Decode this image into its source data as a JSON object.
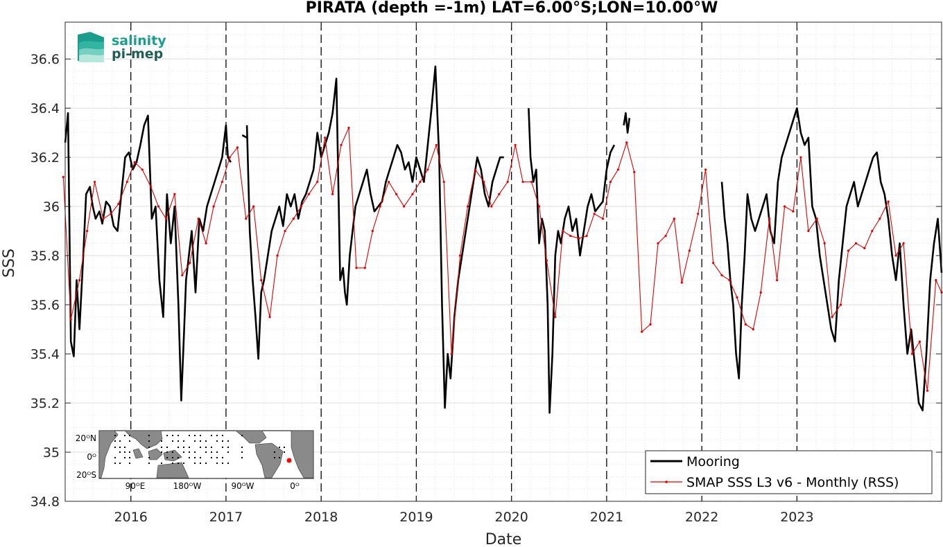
{
  "chart_data": {
    "type": "line",
    "title": "PIRATA (depth =-1m) LAT=6.00°S;LON=10.00°W",
    "xlabel": "Date",
    "ylabel": "SSS",
    "xlim": [
      2015.31,
      2024.52
    ],
    "ylim": [
      34.8,
      36.75
    ],
    "x_ticks": [
      2016,
      2017,
      2018,
      2019,
      2020,
      2021,
      2022,
      2023
    ],
    "x_tick_labels": [
      "2016",
      "2017",
      "2018",
      "2019",
      "2020",
      "2021",
      "2022",
      "2023"
    ],
    "y_ticks": [
      34.8,
      35,
      35.2,
      35.4,
      35.6,
      35.8,
      36,
      36.2,
      36.4,
      36.6
    ],
    "y_tick_labels": [
      "34.8",
      "35",
      "35.2",
      "35.4",
      "35.6",
      "35.8",
      "36",
      "36.2",
      "36.4",
      "36.6"
    ],
    "year_lines": [
      2016,
      2017,
      2018,
      2019,
      2020,
      2021,
      2022,
      2023
    ],
    "grid": true,
    "legend_position": "bottom-right",
    "series": [
      {
        "name": "Mooring",
        "color": "#000000",
        "segments": [
          {
            "x": [
              2015.31,
              2015.34,
              2015.37,
              2015.4,
              2015.43,
              2015.46,
              2015.5,
              2015.53,
              2015.57,
              2015.6,
              2015.63,
              2015.67,
              2015.7,
              2015.74,
              2015.78,
              2015.82,
              2015.86,
              2015.9,
              2015.94,
              2015.98,
              2016.02,
              2016.06,
              2016.1,
              2016.14,
              2016.18,
              2016.22,
              2016.26,
              2016.3,
              2016.34,
              2016.38,
              2016.42,
              2016.46,
              2016.5,
              2016.53,
              2016.56,
              2016.58,
              2016.61,
              2016.64,
              2016.68,
              2016.72,
              2016.76,
              2016.8,
              2016.84,
              2016.88,
              2016.92,
              2016.96,
              2017.0,
              2017.02,
              2017.05
            ],
            "y": [
              36.26,
              36.38,
              35.45,
              35.39,
              35.7,
              35.5,
              35.8,
              36.05,
              36.08,
              36.0,
              35.95,
              35.98,
              35.93,
              36.02,
              36.0,
              35.92,
              35.9,
              36.05,
              36.2,
              36.22,
              36.15,
              36.18,
              36.25,
              36.33,
              36.37,
              35.95,
              36.0,
              35.7,
              35.55,
              36.05,
              35.85,
              36.0,
              35.6,
              35.21,
              35.5,
              35.7,
              35.8,
              35.9,
              35.65,
              35.95,
              35.9,
              36.0,
              36.05,
              36.1,
              36.15,
              36.2,
              36.33,
              36.2,
              36.18
            ]
          },
          {
            "x": [
              2017.17,
              2017.22
            ],
            "y": [
              36.29,
              36.28
            ]
          },
          {
            "x": [
              2017.22,
              2017.25,
              2017.28,
              2017.31,
              2017.34,
              2017.37,
              2017.4,
              2017.44,
              2017.48,
              2017.52,
              2017.56,
              2017.6,
              2017.64,
              2017.68,
              2017.72,
              2017.76,
              2017.8,
              2017.84,
              2017.88,
              2017.92,
              2017.96,
              2018.0,
              2018.04,
              2018.08,
              2018.12,
              2018.16,
              2018.2,
              2018.23,
              2018.25,
              2018.27,
              2018.3,
              2018.33,
              2018.36,
              2018.4,
              2018.44,
              2018.48,
              2018.52,
              2018.56,
              2018.6,
              2018.64,
              2018.68,
              2018.72,
              2018.76,
              2018.8,
              2018.84,
              2018.88,
              2018.92,
              2018.96,
              2019.0,
              2019.04,
              2019.08,
              2019.12,
              2019.16,
              2019.2,
              2019.24,
              2019.27,
              2019.3,
              2019.33,
              2019.36,
              2019.4,
              2019.44,
              2019.48,
              2019.52,
              2019.56,
              2019.6,
              2019.64,
              2019.68,
              2019.72,
              2019.76,
              2019.8,
              2019.84,
              2019.88,
              2019.92
            ],
            "y": [
              36.33,
              35.9,
              35.7,
              35.55,
              35.38,
              35.65,
              35.7,
              35.8,
              35.9,
              35.95,
              36.0,
              35.92,
              36.05,
              36.0,
              36.05,
              35.95,
              36.02,
              36.05,
              36.1,
              36.15,
              36.3,
              36.2,
              36.25,
              36.3,
              36.38,
              36.52,
              35.7,
              35.75,
              35.65,
              35.6,
              35.8,
              35.9,
              36.0,
              36.05,
              36.1,
              36.15,
              36.05,
              35.98,
              36.0,
              36.02,
              36.1,
              36.15,
              36.2,
              36.25,
              36.22,
              36.15,
              36.18,
              36.1,
              36.2,
              36.15,
              36.1,
              36.25,
              36.4,
              36.57,
              36.2,
              35.6,
              35.18,
              35.4,
              35.3,
              35.55,
              35.7,
              35.8,
              35.9,
              36.0,
              36.1,
              36.2,
              36.15,
              36.05,
              36.0,
              36.1,
              36.15,
              36.2,
              36.2
            ]
          },
          {
            "x": [
              2020.18,
              2020.2,
              2020.23,
              2020.26,
              2020.29,
              2020.32,
              2020.35,
              2020.38,
              2020.4,
              2020.43,
              2020.46,
              2020.49,
              2020.52,
              2020.56,
              2020.6,
              2020.64,
              2020.68,
              2020.72,
              2020.76,
              2020.8,
              2020.84,
              2020.88,
              2020.92,
              2020.96,
              2021.0,
              2021.04,
              2021.08
            ],
            "y": [
              36.4,
              36.2,
              36.1,
              36.15,
              35.85,
              35.95,
              35.9,
              35.6,
              35.16,
              35.4,
              35.8,
              35.9,
              35.85,
              35.95,
              36.0,
              35.9,
              35.95,
              35.8,
              35.9,
              36.0,
              36.05,
              35.98,
              36.0,
              36.02,
              36.15,
              36.22,
              36.25
            ]
          },
          {
            "x": [
              2021.18,
              2021.2,
              2021.22,
              2021.24
            ],
            "y": [
              36.33,
              36.38,
              36.3,
              36.36
            ]
          },
          {
            "x": [
              2022.21,
              2022.24,
              2022.27,
              2022.3,
              2022.33,
              2022.36,
              2022.39,
              2022.42,
              2022.45,
              2022.48,
              2022.52,
              2022.56,
              2022.6,
              2022.64,
              2022.68,
              2022.72,
              2022.76,
              2022.8,
              2022.84,
              2022.88,
              2022.92,
              2022.96,
              2023.0,
              2023.04,
              2023.08,
              2023.12,
              2023.16,
              2023.2,
              2023.24,
              2023.28,
              2023.32,
              2023.36,
              2023.4,
              2023.44,
              2023.48,
              2023.52,
              2023.56,
              2023.6,
              2023.64,
              2023.68,
              2023.72,
              2023.76,
              2023.8,
              2023.84,
              2023.88,
              2023.92,
              2023.96,
              2024.0,
              2024.04,
              2024.08,
              2024.12,
              2024.16,
              2024.2,
              2024.24,
              2024.28,
              2024.32,
              2024.36,
              2024.4,
              2024.44,
              2024.48,
              2024.52
            ],
            "y": [
              36.1,
              35.95,
              35.85,
              35.7,
              35.6,
              35.4,
              35.3,
              35.6,
              35.8,
              36.05,
              35.95,
              35.9,
              35.95,
              36.0,
              36.05,
              35.9,
              35.85,
              36.1,
              36.2,
              36.25,
              36.3,
              36.35,
              36.4,
              36.3,
              36.25,
              36.28,
              36.0,
              35.95,
              35.8,
              35.7,
              35.6,
              35.5,
              35.45,
              35.7,
              35.85,
              36.0,
              36.05,
              36.1,
              36.0,
              36.05,
              36.1,
              36.15,
              36.2,
              36.22,
              36.1,
              36.05,
              35.95,
              35.8,
              35.7,
              35.85,
              35.6,
              35.4,
              35.5,
              35.35,
              35.2,
              35.17,
              35.4,
              35.7,
              35.85,
              35.95,
              35.73
            ]
          }
        ]
      },
      {
        "name": "SMAP SSS L3 v6 - Monthly (RSS)",
        "color": "#e00000",
        "x": [
          2015.29,
          2015.37,
          2015.46,
          2015.54,
          2015.62,
          2015.71,
          2015.79,
          2015.87,
          2015.96,
          2016.04,
          2016.12,
          2016.21,
          2016.29,
          2016.37,
          2016.46,
          2016.54,
          2016.62,
          2016.71,
          2016.79,
          2016.87,
          2016.96,
          2017.04,
          2017.12,
          2017.21,
          2017.29,
          2017.37,
          2017.46,
          2017.54,
          2017.62,
          2017.71,
          2017.79,
          2017.87,
          2017.96,
          2018.04,
          2018.12,
          2018.21,
          2018.29,
          2018.37,
          2018.46,
          2018.54,
          2018.62,
          2018.71,
          2018.79,
          2018.87,
          2018.96,
          2019.04,
          2019.12,
          2019.21,
          2019.29,
          2019.37,
          2019.46,
          2019.54,
          2019.62,
          2019.71,
          2019.79,
          2019.87,
          2019.96,
          2020.04,
          2020.12,
          2020.21,
          2020.29,
          2020.37,
          2020.46,
          2020.54,
          2020.62,
          2020.71,
          2020.79,
          2020.87,
          2020.96,
          2021.04,
          2021.12,
          2021.21,
          2021.29,
          2021.37,
          2021.46,
          2021.54,
          2021.62,
          2021.71,
          2021.79,
          2021.87,
          2021.96,
          2022.04,
          2022.12,
          2022.21,
          2022.29,
          2022.37,
          2022.46,
          2022.54,
          2022.62,
          2022.71,
          2022.79,
          2022.87,
          2022.96,
          2023.04,
          2023.12,
          2023.21,
          2023.29,
          2023.37,
          2023.46,
          2023.54,
          2023.62,
          2023.71,
          2023.79,
          2023.87,
          2023.96,
          2024.04,
          2024.12,
          2024.21,
          2024.29,
          2024.37,
          2024.46,
          2024.52
        ],
        "y": [
          36.12,
          35.54,
          35.7,
          35.9,
          36.1,
          35.95,
          35.97,
          36.01,
          36.1,
          36.18,
          36.15,
          36.08,
          36.0,
          35.95,
          36.05,
          35.72,
          35.77,
          35.95,
          35.85,
          36.0,
          36.1,
          36.2,
          36.24,
          35.95,
          36.0,
          35.7,
          35.55,
          35.8,
          35.9,
          35.95,
          36.0,
          36.05,
          36.1,
          36.28,
          36.05,
          36.25,
          36.32,
          35.75,
          35.75,
          35.9,
          36.0,
          36.1,
          36.05,
          36.0,
          36.05,
          36.1,
          36.15,
          36.25,
          36.1,
          35.4,
          35.8,
          36.0,
          36.15,
          36.1,
          36.0,
          36.05,
          36.1,
          36.25,
          36.1,
          36.1,
          36.0,
          35.78,
          35.55,
          35.9,
          35.88,
          35.87,
          35.88,
          35.97,
          35.95,
          36.1,
          36.15,
          36.26,
          36.14,
          35.49,
          35.52,
          35.85,
          35.88,
          35.95,
          35.69,
          35.82,
          35.97,
          36.15,
          35.77,
          35.72,
          35.7,
          35.63,
          35.52,
          35.5,
          35.65,
          35.95,
          35.7,
          36.0,
          35.98,
          36.2,
          35.9,
          35.95,
          35.85,
          35.55,
          35.6,
          35.82,
          35.85,
          35.83,
          35.9,
          35.95,
          36.02,
          35.8,
          35.85,
          35.4,
          35.45,
          35.25,
          35.7,
          35.65
        ]
      }
    ],
    "inset_map": {
      "lat_tick_labels": [
        "20ᴼN",
        "0ᴼ",
        "20ᴼS"
      ],
      "lon_tick_labels": [
        "90ᴼE",
        "180ᴼW",
        "90ᴼW",
        "0ᴼ"
      ]
    },
    "logo": {
      "line1": "salinity",
      "line2": "pi-mep"
    }
  }
}
